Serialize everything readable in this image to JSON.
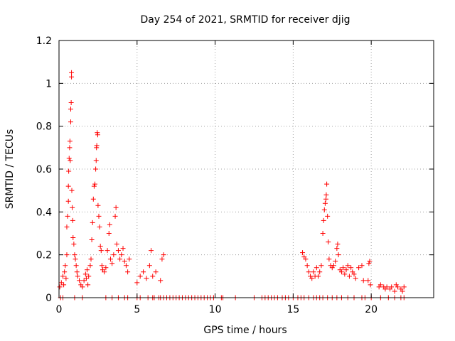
{
  "chart_data": {
    "type": "scatter",
    "title": "Day 254 of 2021, SRMTID for receiver djig",
    "xlabel": "GPS time / hours",
    "ylabel": "SRMTID / TECUs",
    "xlim": [
      0,
      24
    ],
    "ylim": [
      0,
      1.2
    ],
    "xticks": [
      0,
      5,
      10,
      15,
      20
    ],
    "yticks": [
      0,
      0.2,
      0.4,
      0.6,
      0.8,
      1,
      1.2
    ],
    "grid": true,
    "marker": "+",
    "series": [
      {
        "name": "SRMTID",
        "color": "#ff0000",
        "points": [
          [
            0.05,
            0.05
          ],
          [
            0.15,
            0.07
          ],
          [
            0.25,
            0.1
          ],
          [
            0.3,
            0.06
          ],
          [
            0.35,
            0.12
          ],
          [
            0.4,
            0.15
          ],
          [
            0.45,
            0.09
          ],
          [
            0.5,
            0.2
          ],
          [
            0.5,
            0.33
          ],
          [
            0.55,
            0.38
          ],
          [
            0.6,
            0.45
          ],
          [
            0.6,
            0.52
          ],
          [
            0.62,
            0.59
          ],
          [
            0.65,
            0.65
          ],
          [
            0.68,
            0.7
          ],
          [
            0.7,
            0.73
          ],
          [
            0.72,
            0.64
          ],
          [
            0.75,
            0.82
          ],
          [
            0.75,
            0.88
          ],
          [
            0.78,
            0.91
          ],
          [
            0.8,
            1.03
          ],
          [
            0.8,
            1.05
          ],
          [
            0.82,
            0.5
          ],
          [
            0.85,
            0.42
          ],
          [
            0.88,
            0.36
          ],
          [
            0.9,
            0.28
          ],
          [
            0.95,
            0.25
          ],
          [
            1.0,
            0.2
          ],
          [
            1.05,
            0.18
          ],
          [
            1.1,
            0.15
          ],
          [
            1.15,
            0.12
          ],
          [
            1.2,
            0.1
          ],
          [
            1.3,
            0.08
          ],
          [
            1.4,
            0.06
          ],
          [
            1.5,
            0.05
          ],
          [
            1.6,
            0.08
          ],
          [
            1.7,
            0.11
          ],
          [
            1.75,
            0.09
          ],
          [
            1.8,
            0.13
          ],
          [
            1.85,
            0.06
          ],
          [
            1.9,
            0.1
          ],
          [
            2.0,
            0.15
          ],
          [
            2.05,
            0.18
          ],
          [
            2.1,
            0.27
          ],
          [
            2.15,
            0.35
          ],
          [
            2.2,
            0.46
          ],
          [
            2.25,
            0.52
          ],
          [
            2.3,
            0.53
          ],
          [
            2.35,
            0.6
          ],
          [
            2.38,
            0.64
          ],
          [
            2.4,
            0.7
          ],
          [
            2.42,
            0.71
          ],
          [
            2.45,
            0.77
          ],
          [
            2.48,
            0.76
          ],
          [
            2.5,
            0.43
          ],
          [
            2.55,
            0.38
          ],
          [
            2.6,
            0.33
          ],
          [
            2.65,
            0.24
          ],
          [
            2.7,
            0.22
          ],
          [
            2.75,
            0.15
          ],
          [
            2.8,
            0.13
          ],
          [
            2.9,
            0.12
          ],
          [
            3.0,
            0.14
          ],
          [
            3.1,
            0.22
          ],
          [
            3.2,
            0.3
          ],
          [
            3.25,
            0.34
          ],
          [
            3.3,
            0.18
          ],
          [
            3.4,
            0.16
          ],
          [
            3.5,
            0.2
          ],
          [
            3.6,
            0.38
          ],
          [
            3.65,
            0.42
          ],
          [
            3.7,
            0.25
          ],
          [
            3.8,
            0.22
          ],
          [
            3.9,
            0.18
          ],
          [
            4.0,
            0.2
          ],
          [
            4.1,
            0.23
          ],
          [
            4.2,
            0.17
          ],
          [
            4.3,
            0.15
          ],
          [
            4.4,
            0.12
          ],
          [
            4.5,
            0.18
          ],
          [
            5.0,
            0.07
          ],
          [
            5.2,
            0.1
          ],
          [
            5.4,
            0.12
          ],
          [
            5.6,
            0.09
          ],
          [
            5.8,
            0.15
          ],
          [
            5.9,
            0.22
          ],
          [
            6.0,
            0.1
          ],
          [
            6.2,
            0.12
          ],
          [
            6.5,
            0.08
          ],
          [
            6.6,
            0.18
          ],
          [
            6.7,
            0.2
          ],
          [
            0.1,
            0.0
          ],
          [
            0.25,
            0.0
          ],
          [
            1.0,
            0.0
          ],
          [
            1.5,
            0.0
          ],
          [
            3.0,
            0.0
          ],
          [
            3.4,
            0.0
          ],
          [
            3.8,
            0.0
          ],
          [
            4.2,
            0.0
          ],
          [
            4.4,
            0.0
          ],
          [
            5.0,
            0.0
          ],
          [
            5.2,
            0.0
          ],
          [
            5.7,
            0.0
          ],
          [
            6.0,
            0.0
          ],
          [
            6.1,
            0.0
          ],
          [
            6.4,
            0.0
          ],
          [
            6.5,
            0.0
          ],
          [
            6.7,
            0.0
          ],
          [
            6.9,
            0.0
          ],
          [
            7.1,
            0.0
          ],
          [
            7.3,
            0.0
          ],
          [
            7.5,
            0.0
          ],
          [
            7.7,
            0.0
          ],
          [
            7.9,
            0.0
          ],
          [
            8.1,
            0.0
          ],
          [
            8.3,
            0.0
          ],
          [
            8.5,
            0.0
          ],
          [
            8.7,
            0.0
          ],
          [
            8.9,
            0.0
          ],
          [
            9.1,
            0.0
          ],
          [
            9.3,
            0.0
          ],
          [
            9.5,
            0.0
          ],
          [
            9.7,
            0.0
          ],
          [
            9.9,
            0.0
          ],
          [
            10.4,
            0.0
          ],
          [
            10.5,
            0.0
          ],
          [
            11.3,
            0.0
          ],
          [
            12.5,
            0.0
          ],
          [
            13.0,
            0.0
          ],
          [
            13.2,
            0.0
          ],
          [
            13.4,
            0.0
          ],
          [
            13.6,
            0.0
          ],
          [
            13.8,
            0.0
          ],
          [
            14.0,
            0.0
          ],
          [
            14.3,
            0.0
          ],
          [
            14.5,
            0.0
          ],
          [
            14.7,
            0.0
          ],
          [
            15.0,
            0.0
          ],
          [
            15.3,
            0.0
          ],
          [
            15.5,
            0.0
          ],
          [
            15.7,
            0.0
          ],
          [
            16.0,
            0.0
          ],
          [
            16.3,
            0.0
          ],
          [
            16.5,
            0.0
          ],
          [
            16.7,
            0.0
          ],
          [
            16.9,
            0.0
          ],
          [
            17.2,
            0.0
          ],
          [
            17.5,
            0.0
          ],
          [
            17.8,
            0.0
          ],
          [
            18.1,
            0.0
          ],
          [
            18.5,
            0.0
          ],
          [
            18.9,
            0.0
          ],
          [
            19.4,
            0.0
          ],
          [
            19.6,
            0.0
          ],
          [
            20.0,
            0.0
          ],
          [
            20.6,
            0.0
          ],
          [
            21.1,
            0.0
          ],
          [
            21.5,
            0.0
          ],
          [
            21.9,
            0.0
          ],
          [
            22.1,
            0.0
          ],
          [
            15.6,
            0.21
          ],
          [
            15.7,
            0.19
          ],
          [
            15.8,
            0.18
          ],
          [
            15.9,
            0.15
          ],
          [
            16.0,
            0.12
          ],
          [
            16.1,
            0.1
          ],
          [
            16.2,
            0.09
          ],
          [
            16.3,
            0.12
          ],
          [
            16.4,
            0.1
          ],
          [
            16.5,
            0.14
          ],
          [
            16.6,
            0.1
          ],
          [
            16.7,
            0.12
          ],
          [
            16.8,
            0.15
          ],
          [
            16.9,
            0.3
          ],
          [
            16.95,
            0.36
          ],
          [
            17.0,
            0.41
          ],
          [
            17.05,
            0.44
          ],
          [
            17.1,
            0.46
          ],
          [
            17.12,
            0.48
          ],
          [
            17.15,
            0.53
          ],
          [
            17.2,
            0.38
          ],
          [
            17.25,
            0.26
          ],
          [
            17.3,
            0.18
          ],
          [
            17.4,
            0.15
          ],
          [
            17.5,
            0.14
          ],
          [
            17.6,
            0.15
          ],
          [
            17.7,
            0.17
          ],
          [
            17.8,
            0.23
          ],
          [
            17.85,
            0.25
          ],
          [
            17.9,
            0.2
          ],
          [
            18.0,
            0.13
          ],
          [
            18.1,
            0.12
          ],
          [
            18.2,
            0.14
          ],
          [
            18.3,
            0.11
          ],
          [
            18.4,
            0.13
          ],
          [
            18.5,
            0.15
          ],
          [
            18.6,
            0.1
          ],
          [
            18.7,
            0.14
          ],
          [
            18.8,
            0.12
          ],
          [
            18.9,
            0.11
          ],
          [
            19.0,
            0.09
          ],
          [
            19.2,
            0.14
          ],
          [
            19.4,
            0.15
          ],
          [
            19.5,
            0.08
          ],
          [
            19.8,
            0.08
          ],
          [
            19.85,
            0.16
          ],
          [
            19.9,
            0.17
          ],
          [
            19.95,
            0.06
          ],
          [
            20.5,
            0.05
          ],
          [
            20.6,
            0.06
          ],
          [
            20.8,
            0.05
          ],
          [
            20.9,
            0.04
          ],
          [
            21.0,
            0.05
          ],
          [
            21.2,
            0.04
          ],
          [
            21.3,
            0.05
          ],
          [
            21.5,
            0.03
          ],
          [
            21.6,
            0.06
          ],
          [
            21.7,
            0.05
          ],
          [
            21.9,
            0.04
          ],
          [
            22.0,
            0.03
          ],
          [
            22.1,
            0.05
          ]
        ]
      }
    ]
  }
}
